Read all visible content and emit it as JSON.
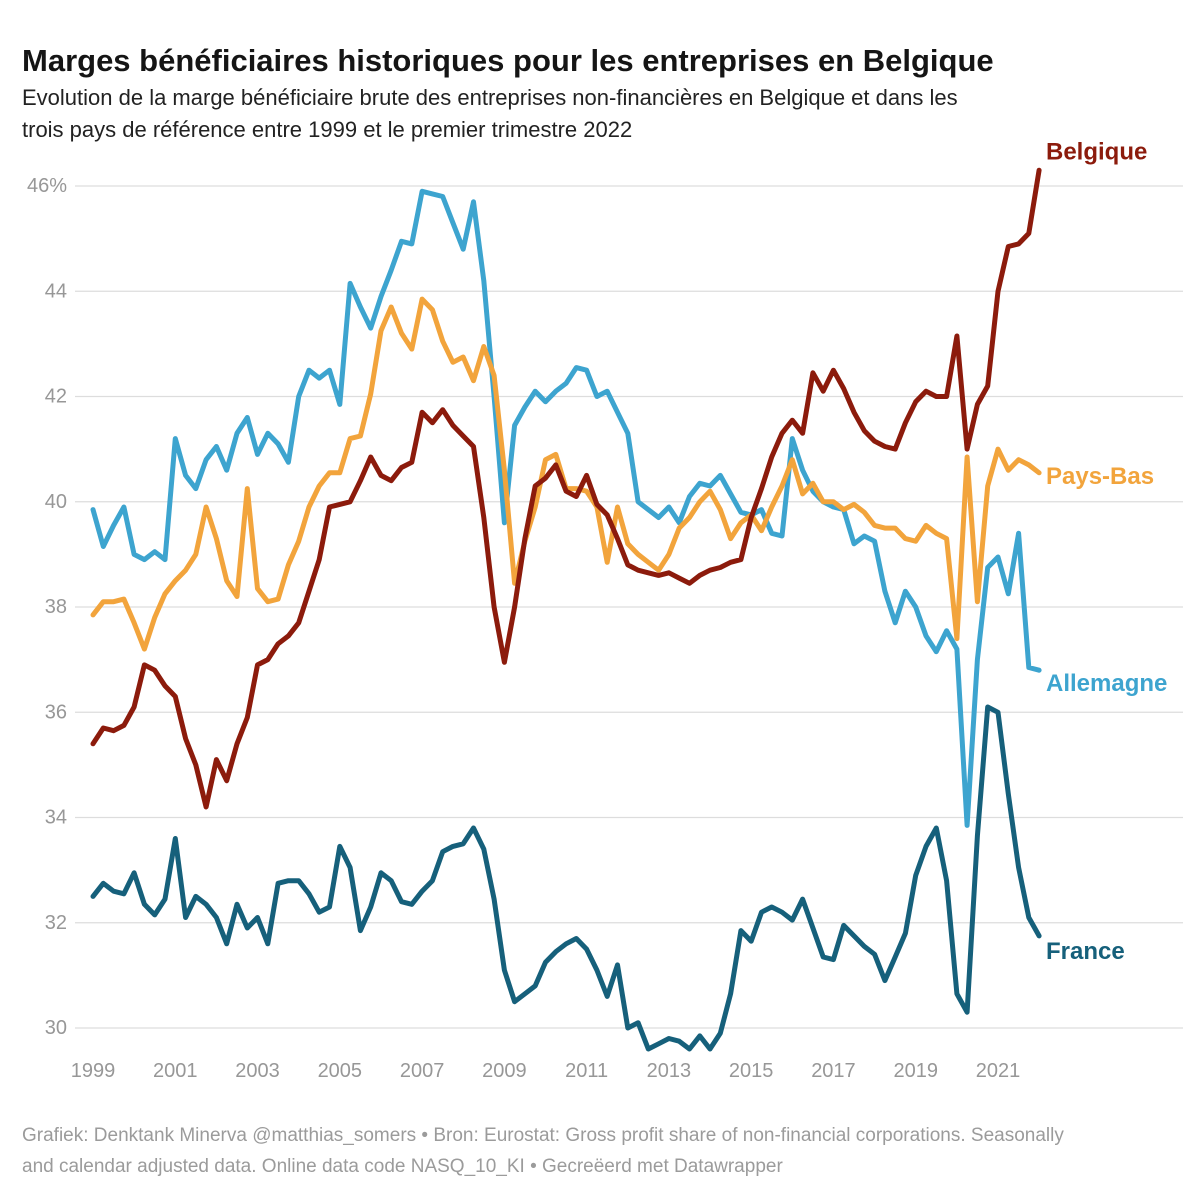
{
  "header": {
    "title": "Marges bénéficiaires historiques pour les entreprises en Belgique",
    "subtitle_lines": [
      "Evolution de la marge bénéficiaire brute des entreprises non-financières en Belgique et dans les",
      "trois pays de référence entre 1999 et le premier trimestre 2022"
    ]
  },
  "footer": {
    "lines": [
      "Grafiek: Denktank Minerva @matthias_somers • Bron: Eurostat: Gross profit share of non-financial corporations. Seasonally",
      "and calendar adjusted data. Online data code NASQ_10_KI • Gecreëerd met Datawrapper"
    ]
  },
  "chart_data": {
    "type": "line",
    "title": "Marges bénéficiaires historiques pour les entreprises en Belgique",
    "unit": "%",
    "frequency": "quarterly",
    "x_start": "1999-Q1",
    "x_end": "2022-Q1",
    "grid": "horizontal",
    "legend_position": "direct-right-labels",
    "x_axis": {
      "tick_years": [
        1999,
        2001,
        2003,
        2005,
        2007,
        2009,
        2011,
        2013,
        2015,
        2017,
        2019,
        2021
      ]
    },
    "y_axis": {
      "ticks": [
        46,
        44,
        42,
        40,
        38,
        36,
        34,
        32,
        30
      ],
      "tick_labels": [
        "46%",
        "44",
        "42",
        "40",
        "38",
        "36",
        "34",
        "32",
        "30"
      ],
      "min": 29.5,
      "max": 46.7
    },
    "series": [
      {
        "name": "Allemagne",
        "color": "#3da4cf",
        "label_value": 36.55,
        "values": [
          39.85,
          39.15,
          39.55,
          39.9,
          39.0,
          38.9,
          39.05,
          38.9,
          41.2,
          40.5,
          40.25,
          40.8,
          41.05,
          40.6,
          41.3,
          41.6,
          40.9,
          41.3,
          41.1,
          40.75,
          42.0,
          42.5,
          42.35,
          42.5,
          41.85,
          44.15,
          43.7,
          43.3,
          43.9,
          44.4,
          44.95,
          44.9,
          45.9,
          45.85,
          45.8,
          45.3,
          44.8,
          45.7,
          44.2,
          42.0,
          39.6,
          41.45,
          41.8,
          42.1,
          41.9,
          42.1,
          42.25,
          42.55,
          42.5,
          42.0,
          42.1,
          41.7,
          41.3,
          40.0,
          39.85,
          39.7,
          39.9,
          39.6,
          40.1,
          40.35,
          40.3,
          40.5,
          40.15,
          39.8,
          39.75,
          39.85,
          39.4,
          39.35,
          41.2,
          40.6,
          40.2,
          40.0,
          39.9,
          39.85,
          39.2,
          39.35,
          39.25,
          38.3,
          37.7,
          38.3,
          38.0,
          37.45,
          37.15,
          37.55,
          37.2,
          33.85,
          37.0,
          38.75,
          38.95,
          38.25,
          39.4,
          36.85,
          36.8
        ]
      },
      {
        "name": "Pays-Bas",
        "color": "#f2a43c",
        "label_value": 40.48,
        "values": [
          37.85,
          38.1,
          38.1,
          38.15,
          37.7,
          37.2,
          37.8,
          38.25,
          38.5,
          38.7,
          39.0,
          39.9,
          39.3,
          38.5,
          38.2,
          40.25,
          38.35,
          38.1,
          38.15,
          38.8,
          39.25,
          39.9,
          40.3,
          40.55,
          40.55,
          41.2,
          41.25,
          42.05,
          43.25,
          43.7,
          43.2,
          42.9,
          43.85,
          43.65,
          43.05,
          42.65,
          42.75,
          42.3,
          42.95,
          42.4,
          40.6,
          38.45,
          39.25,
          39.9,
          40.8,
          40.9,
          40.25,
          40.25,
          40.2,
          39.9,
          38.85,
          39.9,
          39.2,
          39.0,
          38.85,
          38.7,
          39.0,
          39.5,
          39.7,
          40.0,
          40.2,
          39.85,
          39.3,
          39.6,
          39.75,
          39.45,
          39.9,
          40.3,
          40.8,
          40.15,
          40.35,
          40.0,
          40.0,
          39.85,
          39.95,
          39.8,
          39.55,
          39.5,
          39.5,
          39.3,
          39.25,
          39.55,
          39.4,
          39.3,
          37.4,
          40.85,
          38.1,
          40.3,
          41.0,
          40.6,
          40.8,
          40.7,
          40.55
        ]
      },
      {
        "name": "France",
        "color": "#16607b",
        "label_value": 31.45,
        "values": [
          32.5,
          32.75,
          32.6,
          32.55,
          32.95,
          32.35,
          32.15,
          32.45,
          33.6,
          32.1,
          32.5,
          32.35,
          32.1,
          31.6,
          32.35,
          31.9,
          32.1,
          31.6,
          32.75,
          32.8,
          32.8,
          32.55,
          32.2,
          32.3,
          33.45,
          33.05,
          31.85,
          32.3,
          32.95,
          32.8,
          32.4,
          32.35,
          32.6,
          32.8,
          33.35,
          33.45,
          33.5,
          33.8,
          33.4,
          32.45,
          31.1,
          30.5,
          30.65,
          30.8,
          31.25,
          31.45,
          31.6,
          31.7,
          31.5,
          31.1,
          30.6,
          31.2,
          30.0,
          30.1,
          29.6,
          29.7,
          29.8,
          29.75,
          29.6,
          29.85,
          29.6,
          29.9,
          30.65,
          31.85,
          31.65,
          32.2,
          32.3,
          32.2,
          32.05,
          32.45,
          31.9,
          31.35,
          31.3,
          31.95,
          31.75,
          31.55,
          31.4,
          30.9,
          31.35,
          31.8,
          32.9,
          33.45,
          33.8,
          32.8,
          30.65,
          30.3,
          33.65,
          36.1,
          36.0,
          34.45,
          33.05,
          32.1,
          31.75
        ]
      },
      {
        "name": "Belgique",
        "color": "#8c1b0c",
        "label_value": 46.65,
        "values": [
          35.4,
          35.7,
          35.65,
          35.75,
          36.1,
          36.9,
          36.8,
          36.5,
          36.3,
          35.5,
          35.0,
          34.2,
          35.1,
          34.7,
          35.4,
          35.9,
          36.9,
          37.0,
          37.3,
          37.45,
          37.7,
          38.3,
          38.9,
          39.9,
          39.95,
          40.0,
          40.4,
          40.85,
          40.5,
          40.4,
          40.65,
          40.75,
          41.7,
          41.5,
          41.75,
          41.45,
          41.25,
          41.05,
          39.7,
          38.0,
          36.95,
          38.0,
          39.3,
          40.3,
          40.45,
          40.7,
          40.2,
          40.1,
          40.5,
          39.95,
          39.75,
          39.3,
          38.8,
          38.7,
          38.65,
          38.6,
          38.65,
          38.55,
          38.45,
          38.6,
          38.7,
          38.75,
          38.85,
          38.9,
          39.7,
          40.25,
          40.85,
          41.3,
          41.55,
          41.3,
          42.45,
          42.1,
          42.5,
          42.15,
          41.7,
          41.35,
          41.15,
          41.05,
          41.0,
          41.5,
          41.9,
          42.1,
          42.0,
          42.0,
          43.15,
          41.0,
          41.85,
          42.2,
          44.0,
          44.85,
          44.9,
          45.1,
          46.3
        ]
      }
    ]
  }
}
